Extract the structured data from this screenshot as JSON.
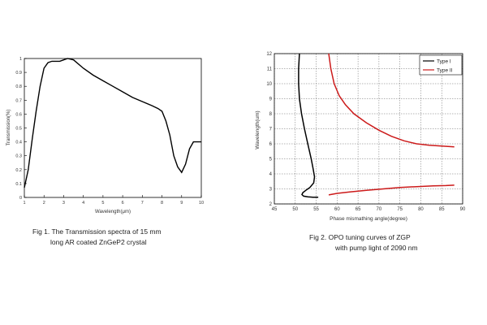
{
  "chart_data": [
    {
      "type": "line",
      "title": "",
      "xlabel": "Wavelength(μm)",
      "ylabel": "Transmission(%)",
      "xlim": [
        1,
        10
      ],
      "ylim": [
        0,
        1
      ],
      "xticks": [
        "1",
        "2",
        "3",
        "4",
        "5",
        "6",
        "7",
        "8",
        "9",
        "10"
      ],
      "yticks": [
        "0",
        "0.1",
        "0.2",
        "0.3",
        "0.4",
        "0.5",
        "0.6",
        "0.7",
        "0.8",
        "0.9",
        "1"
      ],
      "grid": false,
      "series": [
        {
          "color": "#000000",
          "x": [
            1.0,
            1.2,
            1.4,
            1.6,
            1.8,
            2.0,
            2.2,
            2.4,
            2.6,
            2.8,
            3.0,
            3.2,
            3.5,
            4.0,
            4.5,
            5.0,
            5.5,
            6.0,
            6.5,
            7.0,
            7.5,
            7.8,
            8.0,
            8.2,
            8.4,
            8.6,
            8.8,
            9.0,
            9.2,
            9.4,
            9.6,
            9.8,
            10.0
          ],
          "y": [
            0.07,
            0.2,
            0.42,
            0.62,
            0.8,
            0.93,
            0.97,
            0.98,
            0.98,
            0.98,
            0.99,
            1.0,
            0.99,
            0.93,
            0.88,
            0.84,
            0.8,
            0.76,
            0.72,
            0.69,
            0.66,
            0.64,
            0.62,
            0.55,
            0.45,
            0.3,
            0.22,
            0.18,
            0.24,
            0.35,
            0.4,
            0.4,
            0.4
          ]
        }
      ],
      "caption": [
        "Fig 1.  The Transmission spectra of 15 mm",
        "long  AR coated ZnGeP2 crystal"
      ]
    },
    {
      "type": "line",
      "title": "",
      "xlabel": "Phase mismathing angle(degree)",
      "ylabel": "Wavelength(um)",
      "xlim": [
        45,
        90
      ],
      "ylim": [
        2,
        12
      ],
      "xticks": [
        "45",
        "50",
        "55",
        "60",
        "65",
        "70",
        "75",
        "80",
        "85",
        "90"
      ],
      "yticks": [
        "2",
        "3",
        "4",
        "5",
        "6",
        "7",
        "8",
        "9",
        "10",
        "11",
        "12"
      ],
      "grid": true,
      "legend_position": "top-right",
      "series": [
        {
          "name": "Type I",
          "color": "#000000",
          "segments": [
            {
              "x": [
                51.0,
                50.8,
                50.8,
                51.0,
                51.5,
                52.2,
                53.0,
                53.8,
                54.3,
                54.6,
                54.4,
                53.5,
                52.5,
                51.8,
                51.6,
                52.0,
                53.0,
                54.2,
                55.5
              ],
              "y": [
                12.0,
                11.0,
                10.0,
                9.0,
                8.0,
                7.0,
                6.0,
                5.0,
                4.3,
                3.8,
                3.4,
                3.1,
                2.9,
                2.75,
                2.62,
                2.52,
                2.47,
                2.45,
                2.45
              ]
            }
          ]
        },
        {
          "name": "Type II",
          "color": "#cc1a1a",
          "segments": [
            {
              "x": [
                58.0,
                58.5,
                59.3,
                60.5,
                62.0,
                64.0,
                67.0,
                70.0,
                73.0,
                76.0,
                79.0,
                82.0,
                85.0,
                88.0
              ],
              "y": [
                12.0,
                11.0,
                10.0,
                9.2,
                8.6,
                8.0,
                7.4,
                6.9,
                6.5,
                6.2,
                6.0,
                5.9,
                5.85,
                5.8
              ]
            },
            {
              "x": [
                58.0,
                60.0,
                63.0,
                67.0,
                71.0,
                75.0,
                79.0,
                83.0,
                86.0,
                88.0
              ],
              "y": [
                2.6,
                2.7,
                2.8,
                2.9,
                3.0,
                3.1,
                3.15,
                3.2,
                3.22,
                3.25
              ]
            }
          ]
        }
      ],
      "caption": [
        "Fig 2.   OPO tuning curves of ZGP",
        "with pump light of 2090 nm"
      ]
    }
  ]
}
